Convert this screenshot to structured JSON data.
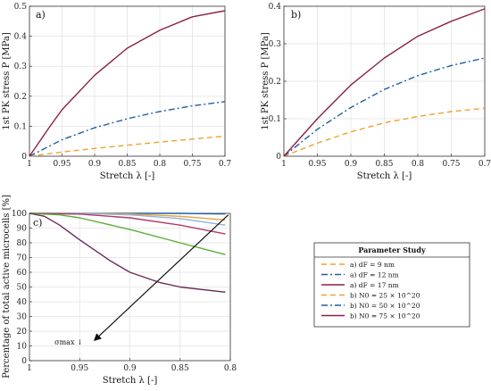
{
  "chart_data": [
    {
      "id": "a",
      "type": "line",
      "panel_label": "a)",
      "xlabel": "Stretch λ [-]",
      "ylabel": "1st PK stress P [MPa]",
      "xlim": [
        1,
        0.7
      ],
      "ylim": [
        0,
        0.5
      ],
      "xticks": [
        "1",
        "0.95",
        "0.9",
        "0.85",
        "0.8",
        "0.75",
        "0.7"
      ],
      "yticks": [
        "0",
        "0.1",
        "0.2",
        "0.3",
        "0.4",
        "0.5"
      ],
      "grid": true,
      "series": [
        {
          "color": "#f0a030",
          "dash": "6,4",
          "x": [
            1,
            0.95,
            0.9,
            0.85,
            0.8,
            0.75,
            0.7
          ],
          "y": [
            0,
            0.014,
            0.026,
            0.037,
            0.047,
            0.057,
            0.067
          ]
        },
        {
          "color": "#1f5fa5",
          "dash": "7,3,2,3",
          "x": [
            1,
            0.95,
            0.9,
            0.85,
            0.8,
            0.75,
            0.7
          ],
          "y": [
            0,
            0.055,
            0.095,
            0.125,
            0.149,
            0.168,
            0.182
          ]
        },
        {
          "color": "#8b2148",
          "dash": "",
          "x": [
            1,
            0.97,
            0.95,
            0.9,
            0.85,
            0.8,
            0.75,
            0.7
          ],
          "y": [
            0,
            0.095,
            0.155,
            0.27,
            0.36,
            0.42,
            0.465,
            0.485
          ]
        }
      ]
    },
    {
      "id": "b",
      "type": "line",
      "panel_label": "b)",
      "xlabel": "Stretch λ [-]",
      "ylabel": "1st PK stress P [MPa]",
      "xlim": [
        1,
        0.7
      ],
      "ylim": [
        0,
        0.4
      ],
      "xticks": [
        "1",
        "0.95",
        "0.9",
        "0.85",
        "0.8",
        "0.75",
        "0.7"
      ],
      "yticks": [
        "0",
        "0.1",
        "0.2",
        "0.3",
        "0.4"
      ],
      "grid": true,
      "series": [
        {
          "color": "#f0a030",
          "dash": "6,4",
          "x": [
            1,
            0.95,
            0.9,
            0.85,
            0.8,
            0.75,
            0.7
          ],
          "y": [
            0,
            0.035,
            0.065,
            0.089,
            0.106,
            0.119,
            0.128
          ]
        },
        {
          "color": "#1f5fa5",
          "dash": "7,3,2,3",
          "x": [
            1,
            0.95,
            0.9,
            0.85,
            0.8,
            0.75,
            0.7
          ],
          "y": [
            0,
            0.072,
            0.13,
            0.178,
            0.215,
            0.242,
            0.262
          ]
        },
        {
          "color": "#8b2148",
          "dash": "",
          "x": [
            1,
            0.95,
            0.9,
            0.85,
            0.8,
            0.75,
            0.7
          ],
          "y": [
            0,
            0.1,
            0.19,
            0.262,
            0.32,
            0.36,
            0.393
          ]
        }
      ]
    },
    {
      "id": "c",
      "type": "line",
      "panel_label": "c)",
      "xlabel": "Stretch λ [-]",
      "ylabel": "Percentage of total active microcells [%]",
      "xlim": [
        1,
        0.8
      ],
      "ylim": [
        0,
        100
      ],
      "xticks": [
        "1",
        "0.95",
        "0.9",
        "0.85",
        "0.8"
      ],
      "yticks": [
        "0",
        "10",
        "20",
        "30",
        "40",
        "50",
        "60",
        "70",
        "80",
        "90",
        "100"
      ],
      "grid": true,
      "annotation": "σmax ↓",
      "arrow": {
        "from": [
          0.802,
          99
        ],
        "to": [
          0.935,
          14
        ]
      },
      "series": [
        {
          "color": "#1f5fa5",
          "dash": "",
          "x": [
            1,
            0.95,
            0.9,
            0.85,
            0.805
          ],
          "y": [
            100,
            100,
            100,
            100,
            99.6
          ]
        },
        {
          "color": "#e8a23a",
          "dash": "",
          "x": [
            1,
            0.95,
            0.9,
            0.85,
            0.805
          ],
          "y": [
            100,
            100,
            99.6,
            98,
            95.5
          ]
        },
        {
          "color": "#8fb4d8",
          "dash": "",
          "x": [
            1,
            0.95,
            0.9,
            0.85,
            0.805
          ],
          "y": [
            100,
            100,
            99,
            96.5,
            92
          ]
        },
        {
          "color": "#b03a6a",
          "dash": "",
          "x": [
            1,
            0.95,
            0.9,
            0.85,
            0.805
          ],
          "y": [
            100,
            99.5,
            97,
            92,
            86
          ]
        },
        {
          "color": "#5aae3a",
          "dash": "",
          "x": [
            1,
            0.97,
            0.95,
            0.9,
            0.85,
            0.805
          ],
          "y": [
            100,
            99,
            97,
            89,
            80,
            72
          ]
        },
        {
          "color": "#6b2a5a",
          "dash": "",
          "x": [
            1,
            0.985,
            0.97,
            0.95,
            0.92,
            0.9,
            0.87,
            0.85,
            0.805
          ],
          "y": [
            100,
            98,
            92,
            82,
            68,
            60,
            53,
            50,
            46.5
          ]
        }
      ]
    }
  ],
  "legend": {
    "title": "Parameter Study",
    "entries": [
      {
        "text": "a) dF = 9 nm",
        "color": "#f0a030",
        "dash": "6,4"
      },
      {
        "text": "a) dF = 12 nm",
        "color": "#1f5fa5",
        "dash": "7,3,2,3"
      },
      {
        "text": "a) dF = 17 nm",
        "color": "#8b2148",
        "dash": ""
      },
      {
        "text": "b) N0 = 25 × 10^20",
        "color": "#f0a030",
        "dash": "6,4"
      },
      {
        "text": "b) N0 = 50 × 10^20",
        "color": "#1f5fa5",
        "dash": "7,3,2,3"
      },
      {
        "text": "b) N0 = 75 × 10^20",
        "color": "#8b2148",
        "dash": ""
      }
    ]
  }
}
